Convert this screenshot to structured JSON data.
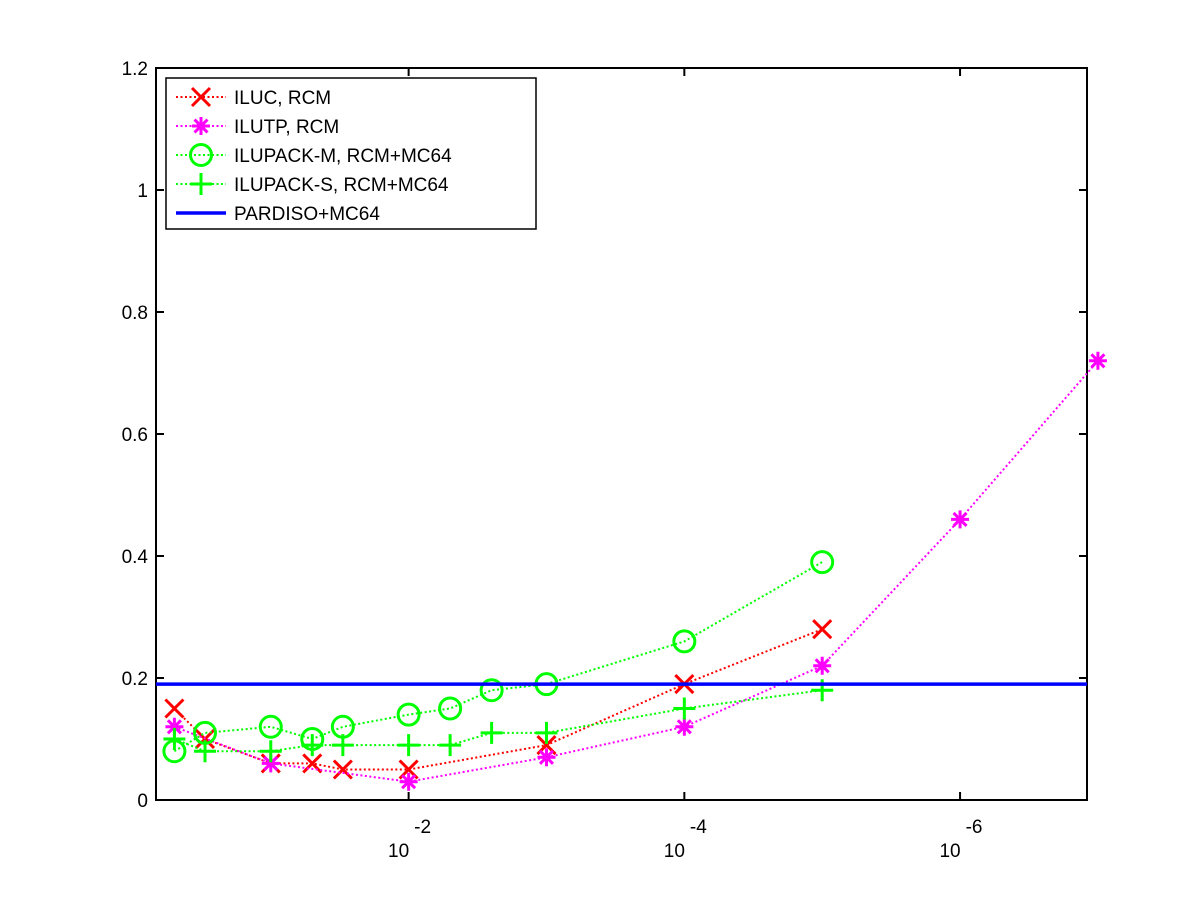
{
  "chart_data": {
    "type": "line",
    "title": "",
    "xlabel": "",
    "ylabel": "",
    "x_scale": "log",
    "x_reversed": true,
    "xlim": [
      0.68,
      1.2e-07
    ],
    "ylim": [
      0,
      1.2
    ],
    "x_ticks": [
      {
        "base": "10",
        "exp": "-2"
      },
      {
        "base": "10",
        "exp": "-4"
      },
      {
        "base": "10",
        "exp": "-6"
      }
    ],
    "y_ticks": [
      "0",
      "0.2",
      "0.4",
      "0.6",
      "0.8",
      "1",
      "1.2"
    ],
    "grid": false,
    "legend_position": "top-left",
    "series": [
      {
        "name": "ILUC, RCM",
        "color": "#ff0000",
        "marker": "x",
        "line_style": "dotted",
        "points": [
          [
            0.5,
            0.15
          ],
          [
            0.3,
            0.1
          ],
          [
            0.1,
            0.06
          ],
          [
            0.05,
            0.06
          ],
          [
            0.03,
            0.05
          ],
          [
            0.01,
            0.05
          ],
          [
            0.001,
            0.09
          ],
          [
            0.0001,
            0.19
          ],
          [
            1e-05,
            0.28
          ]
        ]
      },
      {
        "name": "ILUTP, RCM",
        "color": "#ff00ff",
        "marker": "asterisk",
        "line_style": "dotted",
        "points": [
          [
            0.5,
            0.12
          ],
          [
            0.1,
            0.06
          ],
          [
            0.01,
            0.03
          ],
          [
            0.001,
            0.07
          ],
          [
            0.0001,
            0.12
          ],
          [
            1e-05,
            0.22
          ],
          [
            1e-06,
            0.46
          ],
          [
            1e-07,
            0.72
          ]
        ]
      },
      {
        "name": "ILUPACK-M, RCM+MC64",
        "color": "#00ff00",
        "marker": "circle",
        "line_style": "dotted",
        "points": [
          [
            0.5,
            0.08
          ],
          [
            0.3,
            0.11
          ],
          [
            0.1,
            0.12
          ],
          [
            0.05,
            0.1
          ],
          [
            0.03,
            0.12
          ],
          [
            0.01,
            0.14
          ],
          [
            0.005,
            0.15
          ],
          [
            0.0025,
            0.18
          ],
          [
            0.001,
            0.19
          ],
          [
            0.0001,
            0.26
          ],
          [
            1e-05,
            0.39
          ]
        ]
      },
      {
        "name": "ILUPACK-S, RCM+MC64",
        "color": "#00ff00",
        "marker": "plus",
        "line_style": "dotted",
        "points": [
          [
            0.5,
            0.1
          ],
          [
            0.3,
            0.08
          ],
          [
            0.1,
            0.08
          ],
          [
            0.05,
            0.09
          ],
          [
            0.03,
            0.09
          ],
          [
            0.01,
            0.09
          ],
          [
            0.005,
            0.09
          ],
          [
            0.0025,
            0.11
          ],
          [
            0.001,
            0.11
          ],
          [
            0.0001,
            0.15
          ],
          [
            1e-05,
            0.18
          ]
        ]
      },
      {
        "name": "PARDISO+MC64",
        "color": "#0000ff",
        "marker": "none",
        "line_style": "solid",
        "points": [
          [
            0.68,
            0.19
          ],
          [
            1.2e-07,
            0.19
          ]
        ]
      }
    ]
  }
}
